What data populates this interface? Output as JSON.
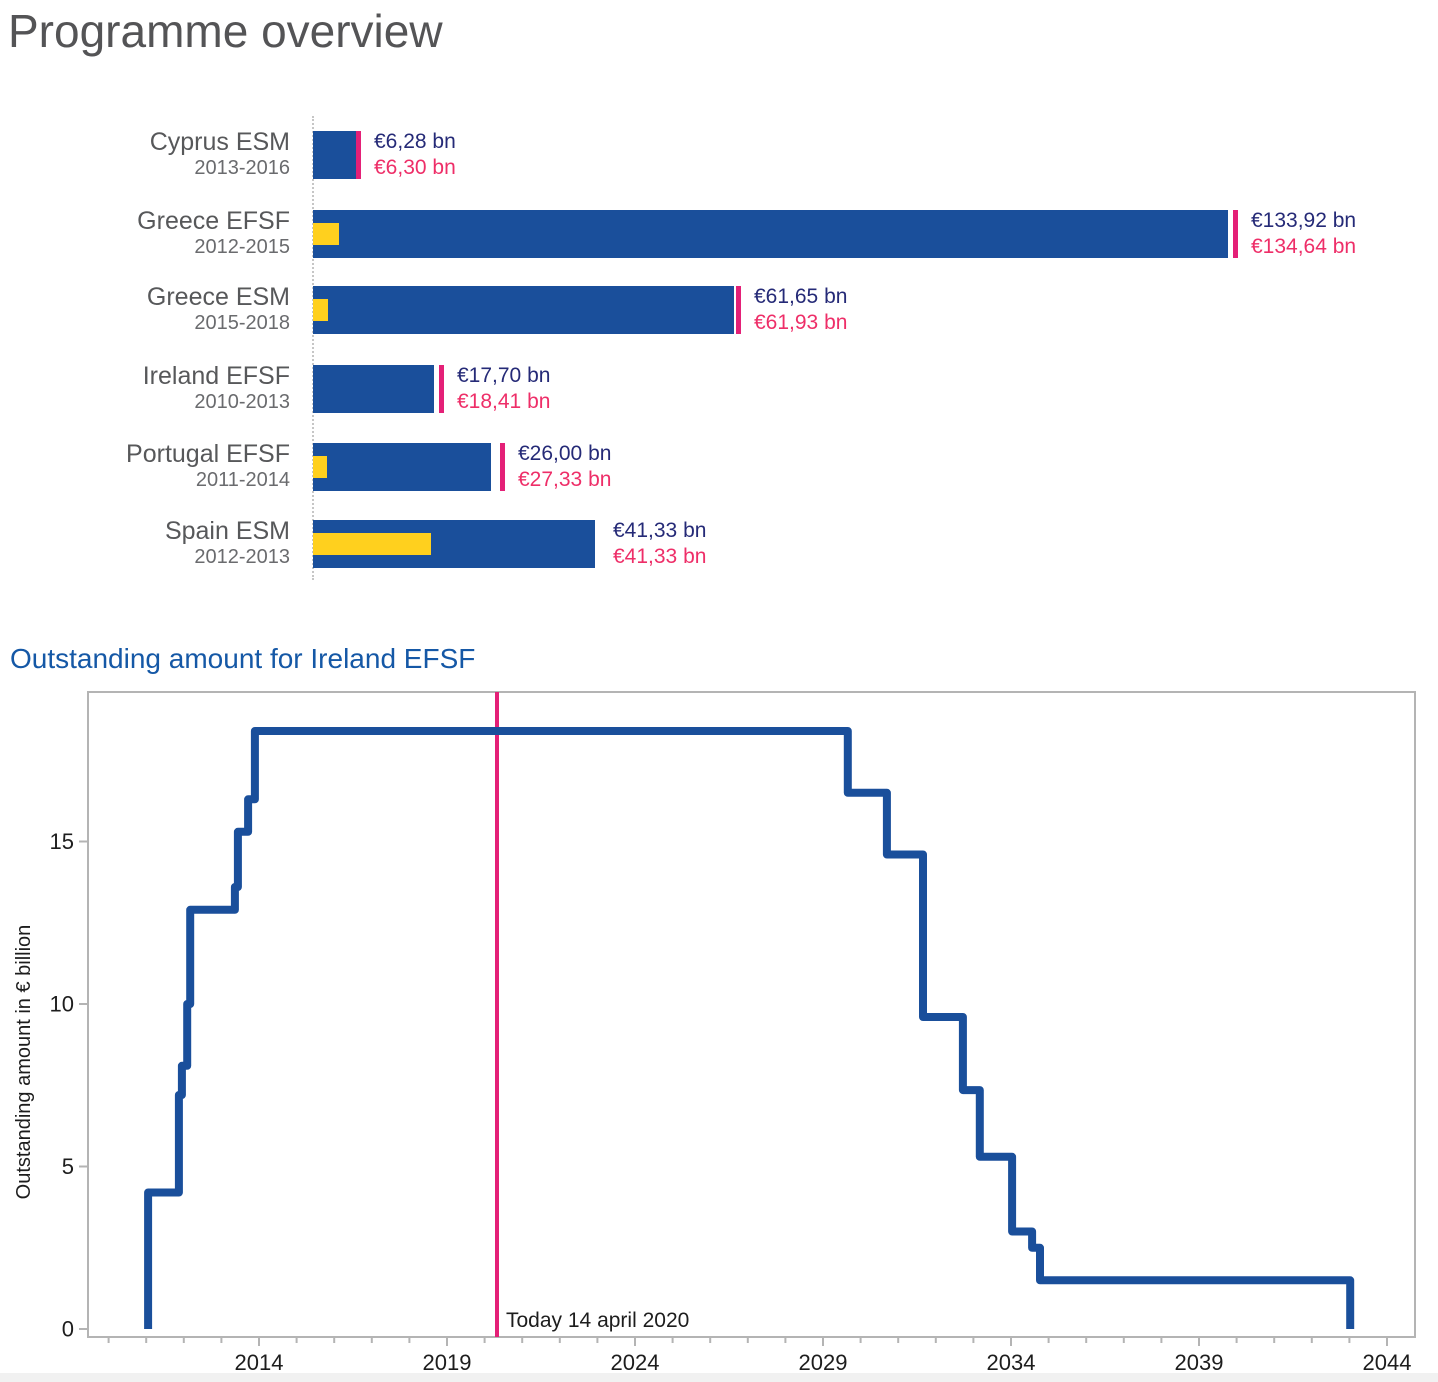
{
  "page_title": "Programme overview",
  "colors": {
    "navy": "#1a4f9b",
    "navy_text": "#252a77",
    "pink_marker": "#e42077",
    "pink_text": "#ee2e68",
    "yellow": "#ffd01e",
    "title_gray": "#545456",
    "heading_blue": "#1558a6",
    "axis_gray": "#b4b4b4",
    "tick_text": "#1d1d1d"
  },
  "chart_data": [
    {
      "type": "bar",
      "orientation": "horizontal",
      "title": "Programme overview",
      "unit": "€ billion",
      "xlim": [
        0,
        140
      ],
      "categories": [
        "Cyprus ESM",
        "Greece EFSF",
        "Greece ESM",
        "Ireland EFSF",
        "Portugal EFSF",
        "Spain ESM"
      ],
      "periods": [
        "2013-2016",
        "2012-2015",
        "2015-2018",
        "2010-2013",
        "2011-2014",
        "2012-2013"
      ],
      "series": [
        {
          "name": "disbursed",
          "color_role": "navy",
          "values": [
            6.28,
            133.92,
            61.65,
            17.7,
            26.0,
            41.33
          ],
          "labels": [
            "€6,28 bn",
            "€133,92 bn",
            "€61,65 bn",
            "€17,70 bn",
            "€26,00 bn",
            "€41,33 bn"
          ]
        },
        {
          "name": "total-committed",
          "color_role": "pink",
          "values": [
            6.3,
            134.64,
            61.93,
            18.41,
            27.33,
            41.33
          ],
          "labels": [
            "€6,30 bn",
            "€134,64 bn",
            "€61,93 bn",
            "€18,41 bn",
            "€27,33 bn",
            "€41,33 bn"
          ],
          "marker_visible": [
            true,
            true,
            true,
            true,
            true,
            false
          ]
        },
        {
          "name": "highlight-yellow",
          "color_role": "yellow",
          "values": [
            0,
            3.8,
            2.2,
            0,
            2.0,
            17.3
          ]
        }
      ]
    },
    {
      "type": "line",
      "title": "Outstanding amount for Ireland EFSF",
      "ylabel": "Outstanding amount in € billion",
      "step": "after",
      "xlim": [
        2009.45,
        2044.75
      ],
      "ylim": [
        0,
        19.6
      ],
      "x_ticks_labeled": [
        2014,
        2019,
        2024,
        2029,
        2034,
        2039,
        2044
      ],
      "x_ticks_minor_range": [
        2010,
        2044
      ],
      "y_ticks": [
        0,
        5,
        10,
        15
      ],
      "start_year": 2011.05,
      "end_year": 2043.02,
      "points": [
        [
          2011.05,
          4.2
        ],
        [
          2011.87,
          7.2
        ],
        [
          2011.95,
          8.1
        ],
        [
          2012.09,
          10.0
        ],
        [
          2012.17,
          12.9
        ],
        [
          2013.36,
          13.6
        ],
        [
          2013.44,
          15.3
        ],
        [
          2013.71,
          16.3
        ],
        [
          2013.89,
          18.4
        ],
        [
          2029.66,
          16.5
        ],
        [
          2030.7,
          14.6
        ],
        [
          2031.66,
          9.6
        ],
        [
          2032.72,
          7.35
        ],
        [
          2033.17,
          5.3
        ],
        [
          2034.03,
          3.0
        ],
        [
          2034.56,
          2.5
        ],
        [
          2034.77,
          1.5
        ],
        [
          2043.02,
          0
        ]
      ],
      "today": {
        "year": 2020.33,
        "label": "Today 14 april 2020"
      }
    }
  ]
}
